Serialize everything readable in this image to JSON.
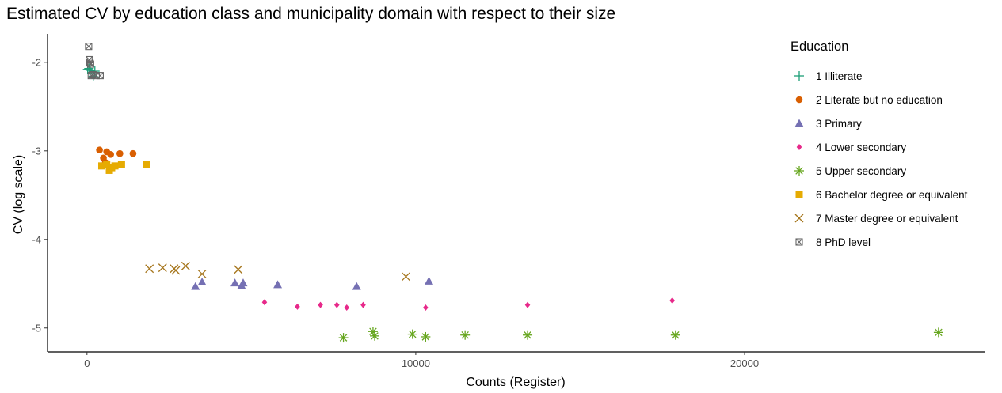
{
  "chart_data": {
    "type": "scatter",
    "title": "Estimated CV by education class and municipality domain with respect to their size",
    "xlabel": "Counts (Register)",
    "ylabel": "CV (log scale)",
    "xlim": [
      -1200,
      27300
    ],
    "ylim": [
      -5.27,
      -1.68
    ],
    "xticks": [
      0,
      10000,
      20000
    ],
    "xtick_labels": [
      "0",
      "10000",
      "20000"
    ],
    "yticks": [
      -2,
      -3,
      -4,
      -5
    ],
    "ytick_labels": [
      "-2",
      "-3",
      "-4",
      "-5"
    ],
    "grid": false,
    "legend": {
      "title": "Education",
      "position": "right"
    },
    "series": [
      {
        "name": "1 Illiterate",
        "color": "#1b9e77",
        "shape": "plus",
        "points": [
          [
            60,
            -2.07
          ],
          [
            100,
            -2.09
          ],
          [
            150,
            -2.13
          ],
          [
            190,
            -2.16
          ],
          [
            240,
            -2.1
          ],
          [
            20,
            -2.08
          ]
        ]
      },
      {
        "name": "2 Literate but no education",
        "color": "#d95f02",
        "shape": "circle",
        "points": [
          [
            380,
            -2.99
          ],
          [
            500,
            -3.08
          ],
          [
            600,
            -3.01
          ],
          [
            720,
            -3.04
          ],
          [
            1000,
            -3.03
          ],
          [
            1400,
            -3.03
          ],
          [
            560,
            -3.13
          ]
        ]
      },
      {
        "name": "3 Primary",
        "color": "#7570b3",
        "shape": "triangle",
        "points": [
          [
            3300,
            -4.53
          ],
          [
            3500,
            -4.48
          ],
          [
            4500,
            -4.49
          ],
          [
            4700,
            -4.52
          ],
          [
            4750,
            -4.49
          ],
          [
            5800,
            -4.51
          ],
          [
            8200,
            -4.53
          ],
          [
            10400,
            -4.47
          ]
        ]
      },
      {
        "name": "4 Lower secondary",
        "color": "#e7298a",
        "shape": "diamond",
        "points": [
          [
            5400,
            -4.71
          ],
          [
            6400,
            -4.76
          ],
          [
            7100,
            -4.74
          ],
          [
            7600,
            -4.74
          ],
          [
            7900,
            -4.77
          ],
          [
            8400,
            -4.74
          ],
          [
            10300,
            -4.77
          ],
          [
            13400,
            -4.74
          ],
          [
            17800,
            -4.69
          ]
        ]
      },
      {
        "name": "5 Upper secondary",
        "color": "#66a61e",
        "shape": "asterisk",
        "points": [
          [
            7800,
            -5.11
          ],
          [
            8700,
            -5.04
          ],
          [
            8750,
            -5.09
          ],
          [
            9900,
            -5.07
          ],
          [
            10300,
            -5.1
          ],
          [
            11500,
            -5.08
          ],
          [
            13400,
            -5.08
          ],
          [
            17900,
            -5.08
          ],
          [
            25900,
            -5.05
          ]
        ]
      },
      {
        "name": "6 Bachelor degree or equivalent",
        "color": "#e6ab02",
        "shape": "square",
        "points": [
          [
            450,
            -3.17
          ],
          [
            600,
            -3.15
          ],
          [
            680,
            -3.22
          ],
          [
            750,
            -3.19
          ],
          [
            850,
            -3.17
          ],
          [
            1050,
            -3.15
          ],
          [
            1800,
            -3.15
          ]
        ]
      },
      {
        "name": "7 Master degree or equivalent",
        "color": "#a6761d",
        "shape": "cross",
        "points": [
          [
            1900,
            -4.33
          ],
          [
            2300,
            -4.32
          ],
          [
            2650,
            -4.33
          ],
          [
            2700,
            -4.35
          ],
          [
            3000,
            -4.3
          ],
          [
            3500,
            -4.39
          ],
          [
            4600,
            -4.34
          ],
          [
            9700,
            -4.42
          ]
        ]
      },
      {
        "name": "8 PhD level",
        "color": "#666666",
        "shape": "boxcross",
        "points": [
          [
            50,
            -1.82
          ],
          [
            70,
            -1.97
          ],
          [
            90,
            -2.0
          ],
          [
            110,
            -2.02
          ],
          [
            130,
            -2.15
          ],
          [
            180,
            -2.14
          ],
          [
            280,
            -2.15
          ],
          [
            400,
            -2.15
          ]
        ]
      }
    ]
  }
}
